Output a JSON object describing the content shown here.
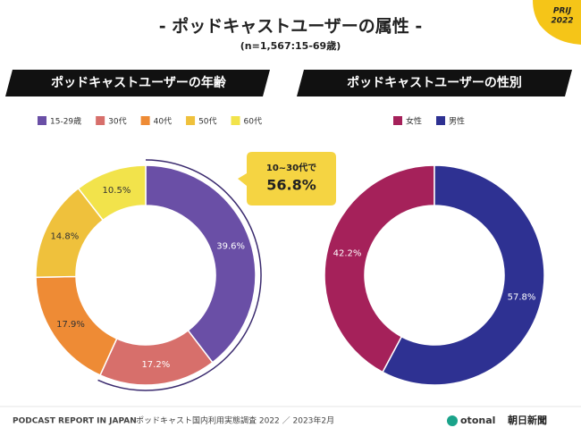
{
  "title": "- ポッドキャストユーザーの属性 -",
  "subtitle": "(n=1,567:15-69歳)",
  "badge": [
    "PRIJ",
    "2022"
  ],
  "callout": {
    "text": "10~30代で",
    "value": 56.8,
    "value_label": "56.8%"
  },
  "chart_data": [
    {
      "type": "donut",
      "title": "ポッドキャストユーザーの年齢",
      "categories": [
        "15-29歳",
        "30代",
        "40代",
        "50代",
        "60代"
      ],
      "values": [
        39.6,
        17.2,
        17.9,
        14.8,
        10.5
      ],
      "value_labels": [
        "39.6%",
        "17.2%",
        "17.9%",
        "14.8%",
        "10.5%"
      ],
      "colors": [
        "#6a4fa6",
        "#d76f6b",
        "#ee8b35",
        "#efc13c",
        "#f2e34b"
      ],
      "direction": "clockwise"
    },
    {
      "type": "donut",
      "title": "ポッドキャストユーザーの性別",
      "categories": [
        "女性",
        "男性"
      ],
      "values": [
        42.2,
        57.8
      ],
      "value_labels": [
        "42.2%",
        "57.8%"
      ],
      "colors": [
        "#a5215a",
        "#2e3192"
      ],
      "direction": "counterclockwise"
    }
  ],
  "footer": {
    "report": "PODCAST REPORT IN JAPAN",
    "survey": "ポッドキャスト国内利用実態調査 2022 ／ 2023年2月",
    "logo1": "otonal",
    "logo2": "朝日新聞"
  }
}
